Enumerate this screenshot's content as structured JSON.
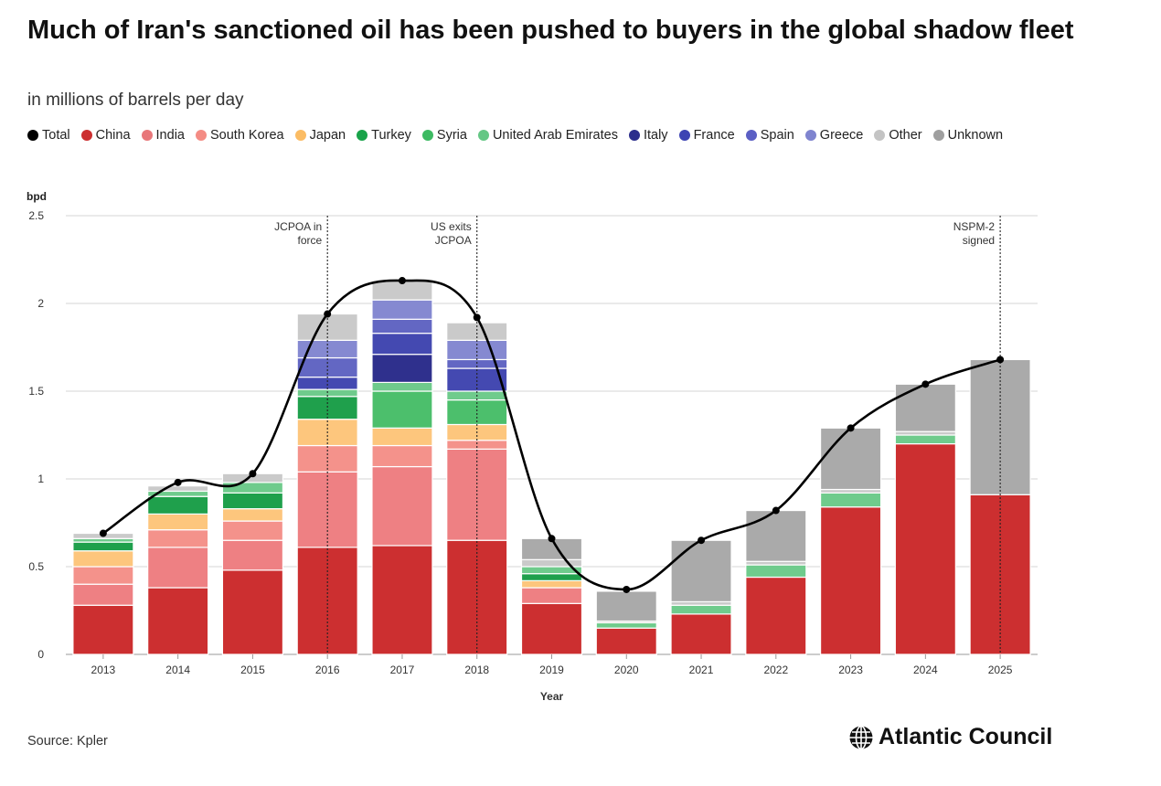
{
  "header": {
    "title": "Much of Iran's sanctioned oil has been pushed to buyers in the global shadow fleet",
    "subtitle": "in millions of barrels per day"
  },
  "legend": [
    {
      "label": "Total",
      "color": "#000000"
    },
    {
      "label": "China",
      "color": "#cc2f30"
    },
    {
      "label": "India",
      "color": "#e8777a"
    },
    {
      "label": "South Korea",
      "color": "#f48c84"
    },
    {
      "label": "Japan",
      "color": "#fbbc64"
    },
    {
      "label": "Turkey",
      "color": "#19a34a"
    },
    {
      "label": "Syria",
      "color": "#3dba62"
    },
    {
      "label": "United Arab Emirates",
      "color": "#65c785"
    },
    {
      "label": "Italy",
      "color": "#2c2e8c"
    },
    {
      "label": "France",
      "color": "#3d43b3"
    },
    {
      "label": "Spain",
      "color": "#5b5fc4"
    },
    {
      "label": "Greece",
      "color": "#7f84cf"
    },
    {
      "label": "Other",
      "color": "#c4c4c4"
    },
    {
      "label": "Unknown",
      "color": "#9f9f9f"
    }
  ],
  "chart_data": {
    "type": "bar",
    "stacked": true,
    "ylabel": "bpd",
    "xlabel": "Year",
    "ylim": [
      0,
      2.5
    ],
    "yticks": [
      "0",
      "0.5",
      "1",
      "1.5",
      "2",
      "2.5"
    ],
    "grid": true,
    "legend_position": "top",
    "categories": [
      "2013",
      "2014",
      "2015",
      "2016",
      "2017",
      "2018",
      "2019",
      "2020",
      "2021",
      "2022",
      "2023",
      "2024",
      "2025"
    ],
    "series": [
      {
        "name": "China",
        "color": "#cc2f30",
        "values": [
          0.28,
          0.38,
          0.48,
          0.61,
          0.62,
          0.65,
          0.29,
          0.15,
          0.23,
          0.44,
          0.84,
          1.2,
          0.91
        ]
      },
      {
        "name": "India",
        "color": "#ee8083",
        "values": [
          0.12,
          0.23,
          0.17,
          0.43,
          0.45,
          0.52,
          0.09,
          0.0,
          0.0,
          0.0,
          0.0,
          0.0,
          0.0
        ]
      },
      {
        "name": "South Korea",
        "color": "#f4928b",
        "values": [
          0.1,
          0.1,
          0.11,
          0.15,
          0.12,
          0.05,
          0.0,
          0.0,
          0.0,
          0.0,
          0.0,
          0.0,
          0.0
        ]
      },
      {
        "name": "Japan",
        "color": "#fdc67d",
        "values": [
          0.09,
          0.09,
          0.07,
          0.15,
          0.1,
          0.09,
          0.04,
          0.0,
          0.0,
          0.0,
          0.0,
          0.0,
          0.0
        ]
      },
      {
        "name": "Turkey",
        "color": "#1fa04c",
        "values": [
          0.05,
          0.1,
          0.09,
          0.13,
          0.0,
          0.0,
          0.04,
          0.0,
          0.0,
          0.0,
          0.0,
          0.0,
          0.0
        ]
      },
      {
        "name": "Syria",
        "color": "#4cbf6c",
        "values": [
          0.0,
          0.0,
          0.0,
          0.0,
          0.21,
          0.14,
          0.0,
          0.0,
          0.0,
          0.0,
          0.0,
          0.0,
          0.0
        ]
      },
      {
        "name": "United Arab Emirates",
        "color": "#6fcb8c",
        "values": [
          0.02,
          0.03,
          0.06,
          0.04,
          0.05,
          0.05,
          0.04,
          0.03,
          0.05,
          0.07,
          0.08,
          0.05,
          0.0
        ]
      },
      {
        "name": "Italy",
        "color": "#2f308d",
        "values": [
          0.0,
          0.0,
          0.0,
          0.0,
          0.16,
          0.0,
          0.0,
          0.0,
          0.0,
          0.0,
          0.0,
          0.0,
          0.0
        ]
      },
      {
        "name": "France",
        "color": "#4449b1",
        "values": [
          0.0,
          0.0,
          0.0,
          0.07,
          0.12,
          0.13,
          0.0,
          0.0,
          0.0,
          0.0,
          0.0,
          0.0,
          0.0
        ]
      },
      {
        "name": "Spain",
        "color": "#6367c3",
        "values": [
          0.0,
          0.0,
          0.0,
          0.11,
          0.08,
          0.05,
          0.0,
          0.0,
          0.0,
          0.0,
          0.0,
          0.0,
          0.0
        ]
      },
      {
        "name": "Greece",
        "color": "#8589d1",
        "values": [
          0.0,
          0.0,
          0.0,
          0.1,
          0.11,
          0.11,
          0.0,
          0.0,
          0.0,
          0.0,
          0.0,
          0.0,
          0.0
        ]
      },
      {
        "name": "Other",
        "color": "#cacaca",
        "values": [
          0.03,
          0.03,
          0.05,
          0.15,
          0.11,
          0.1,
          0.04,
          0.01,
          0.02,
          0.02,
          0.02,
          0.02,
          0.0
        ]
      },
      {
        "name": "Unknown",
        "color": "#aaaaaa",
        "values": [
          0.0,
          0.0,
          0.0,
          0.0,
          0.0,
          0.0,
          0.12,
          0.17,
          0.35,
          0.29,
          0.35,
          0.27,
          0.77
        ]
      }
    ],
    "total": {
      "name": "Total",
      "color": "#000000",
      "values": [
        0.69,
        0.98,
        1.03,
        1.94,
        2.13,
        1.92,
        0.66,
        0.37,
        0.65,
        0.82,
        1.29,
        1.54,
        1.68
      ]
    },
    "annotations": [
      {
        "category": "2016",
        "lines": [
          "JCPOA in",
          "force"
        ]
      },
      {
        "category": "2018",
        "lines": [
          "US exits",
          "JCPOA"
        ]
      },
      {
        "category": "2025",
        "lines": [
          "NSPM-2",
          "signed"
        ]
      }
    ]
  },
  "footer": {
    "source": "Source: Kpler",
    "brand": "Atlantic Council",
    "brand_icon": "globe-icon"
  }
}
